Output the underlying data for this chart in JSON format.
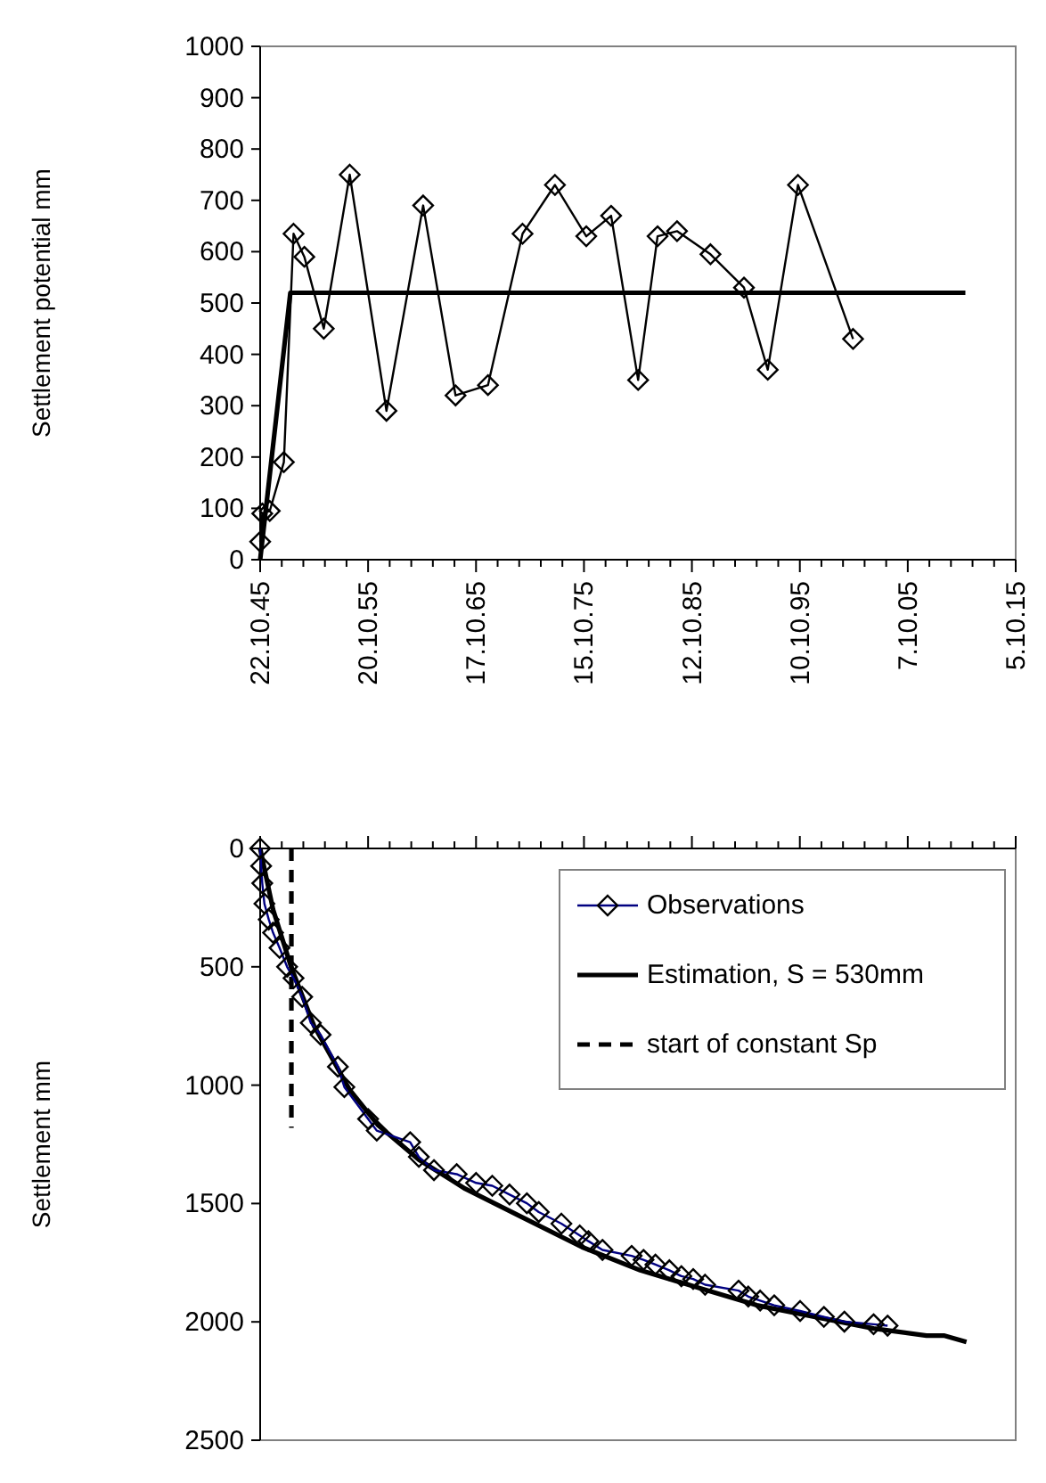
{
  "chart_data": [
    {
      "type": "line",
      "ylabel": "Settlement potential mm",
      "xlim": [
        "1945-10-22",
        "2015-10-05"
      ],
      "ylim": [
        0,
        1000
      ],
      "yticks": [
        0,
        100,
        200,
        300,
        400,
        500,
        600,
        700,
        800,
        900,
        1000
      ],
      "xticks": [
        {
          "value": "1945-10-22",
          "label": "22.10.45"
        },
        {
          "value": "1947-10-22",
          "label": null
        },
        {
          "value": "1949-10-21",
          "label": null
        },
        {
          "value": "1951-10-21",
          "label": null
        },
        {
          "value": "1953-10-20",
          "label": null
        },
        {
          "value": "1955-10-20",
          "label": "20.10.55"
        },
        {
          "value": "1957-10-19",
          "label": null
        },
        {
          "value": "1959-10-19",
          "label": null
        },
        {
          "value": "1961-10-18",
          "label": null
        },
        {
          "value": "1963-10-18",
          "label": null
        },
        {
          "value": "1965-10-17",
          "label": "17.10.65"
        },
        {
          "value": "1967-10-17",
          "label": null
        },
        {
          "value": "1969-10-16",
          "label": null
        },
        {
          "value": "1971-10-16",
          "label": null
        },
        {
          "value": "1973-10-15",
          "label": null
        },
        {
          "value": "1975-10-15",
          "label": "15.10.75"
        },
        {
          "value": "1977-10-14",
          "label": null
        },
        {
          "value": "1979-10-14",
          "label": null
        },
        {
          "value": "1981-10-13",
          "label": null
        },
        {
          "value": "1983-10-13",
          "label": null
        },
        {
          "value": "1985-10-12",
          "label": "12.10.85"
        },
        {
          "value": "1987-10-12",
          "label": null
        },
        {
          "value": "1989-10-11",
          "label": null
        },
        {
          "value": "1991-10-11",
          "label": null
        },
        {
          "value": "1993-10-10",
          "label": null
        },
        {
          "value": "1995-10-10",
          "label": "10.10.95"
        },
        {
          "value": "1997-10-09",
          "label": null
        },
        {
          "value": "1999-10-09",
          "label": null
        },
        {
          "value": "2001-10-08",
          "label": null
        },
        {
          "value": "2003-10-08",
          "label": null
        },
        {
          "value": "2005-10-07",
          "label": "7.10.05"
        },
        {
          "value": "2007-10-07",
          "label": null
        },
        {
          "value": "2009-10-06",
          "label": null
        },
        {
          "value": "2011-10-06",
          "label": null
        },
        {
          "value": "2013-10-05",
          "label": null
        },
        {
          "value": "2015-10-05",
          "label": "5.10.15"
        }
      ],
      "series": [
        {
          "color": "#000000",
          "marker": "diamond",
          "x": [
            "1945-10-22",
            "1946-01-01",
            "1946-09-12",
            "1948-01-01",
            "1948-11-24",
            "1949-11-24",
            "1951-09-12",
            "1954-02-06",
            "1957-07-02",
            "1960-11-24",
            "1963-11-24",
            "1966-11-24",
            "1970-02-06",
            "1973-02-06",
            "1976-01-01",
            "1978-04-20",
            "1980-10-20",
            "1982-08-08",
            "1984-05-27",
            "1987-07-02",
            "1990-08-08",
            "1992-10-20",
            "1995-08-08",
            "2000-09-13"
          ],
          "values": [
            35,
            90,
            95,
            190,
            635,
            590,
            450,
            750,
            290,
            690,
            320,
            340,
            635,
            730,
            630,
            670,
            350,
            630,
            640,
            595,
            530,
            370,
            730,
            430
          ]
        },
        {
          "color": "#000000",
          "marker": "none",
          "x": [
            "1945-10-22",
            "1948-08-08",
            "2011-02-06"
          ],
          "values": [
            0,
            520,
            520
          ]
        }
      ]
    },
    {
      "type": "line",
      "ylabel": "Settlement mm",
      "xlim": [
        "1945-10-22",
        "2015-10-05"
      ],
      "ylim": [
        2500,
        0
      ],
      "yticks": [
        0,
        500,
        1000,
        1500,
        2000,
        2500
      ],
      "tick_labels": "y",
      "legend": "top right",
      "xticks": [
        {
          "value": "1945-10-22",
          "label": null
        },
        {
          "value": "1947-10-22",
          "label": null
        },
        {
          "value": "1949-10-21",
          "label": null
        },
        {
          "value": "1951-10-21",
          "label": null
        },
        {
          "value": "1953-10-20",
          "label": null
        },
        {
          "value": "1955-10-20",
          "label": null
        },
        {
          "value": "1957-10-19",
          "label": null
        },
        {
          "value": "1959-10-19",
          "label": null
        },
        {
          "value": "1961-10-18",
          "label": null
        },
        {
          "value": "1963-10-18",
          "label": null
        },
        {
          "value": "1965-10-17",
          "label": null
        },
        {
          "value": "1967-10-17",
          "label": null
        },
        {
          "value": "1969-10-16",
          "label": null
        },
        {
          "value": "1971-10-16",
          "label": null
        },
        {
          "value": "1973-10-15",
          "label": null
        },
        {
          "value": "1975-10-15",
          "label": null
        },
        {
          "value": "1977-10-14",
          "label": null
        },
        {
          "value": "1979-10-14",
          "label": null
        },
        {
          "value": "1981-10-13",
          "label": null
        },
        {
          "value": "1983-10-13",
          "label": null
        },
        {
          "value": "1985-10-12",
          "label": null
        },
        {
          "value": "1987-10-12",
          "label": null
        },
        {
          "value": "1989-10-11",
          "label": null
        },
        {
          "value": "1991-10-11",
          "label": null
        },
        {
          "value": "1993-10-10",
          "label": null
        },
        {
          "value": "1995-10-10",
          "label": null
        },
        {
          "value": "1997-10-09",
          "label": null
        },
        {
          "value": "1999-10-09",
          "label": null
        },
        {
          "value": "2001-10-08",
          "label": null
        },
        {
          "value": "2003-10-08",
          "label": null
        },
        {
          "value": "2005-10-07",
          "label": null
        },
        {
          "value": "2007-10-07",
          "label": null
        },
        {
          "value": "2009-10-06",
          "label": null
        },
        {
          "value": "2011-10-06",
          "label": null
        },
        {
          "value": "2013-10-05",
          "label": null
        },
        {
          "value": "2015-10-05",
          "label": null
        }
      ],
      "series": [
        {
          "name": "Observations",
          "color": "#000080",
          "marker": "diamond",
          "x": [
            "1945-10-22",
            "1945-11-24",
            "1946-01-01",
            "1946-03-14",
            "1946-08-08",
            "1947-01-01",
            "1947-08-08",
            "1948-04-20",
            "1948-11-24",
            "1949-09-12",
            "1950-07-02",
            "1951-05-27",
            "1953-01-01",
            "1953-08-08",
            "1955-10-20",
            "1956-08-08",
            "1959-09-12",
            "1960-07-02",
            "1961-11-24",
            "1964-01-01",
            "1965-10-20",
            "1967-04-20",
            "1968-11-24",
            "1970-07-02",
            "1971-08-08",
            "1973-09-12",
            "1975-05-27",
            "1976-03-14",
            "1977-07-02",
            "1980-03-14",
            "1981-04-20",
            "1982-05-27",
            "1983-09-12",
            "1984-10-20",
            "1985-11-24",
            "1987-01-01",
            "1990-02-06",
            "1991-01-01",
            "1992-02-06",
            "1993-05-27",
            "1995-10-20",
            "1998-01-01",
            "1999-11-24",
            "2002-08-08",
            "2003-11-24"
          ],
          "values": [
            0,
            74,
            147,
            233,
            300,
            356,
            420,
            500,
            548,
            627,
            737,
            787,
            922,
            1008,
            1143,
            1192,
            1241,
            1303,
            1359,
            1376,
            1413,
            1425,
            1462,
            1499,
            1536,
            1585,
            1635,
            1659,
            1696,
            1721,
            1738,
            1758,
            1782,
            1807,
            1819,
            1843,
            1868,
            1893,
            1910,
            1930,
            1954,
            1979,
            1999,
            2010,
            2016
          ]
        },
        {
          "name": "Estimation, S = 530mm",
          "color": "#000000",
          "marker": "none",
          "x": [
            "1945-10-22",
            "1947-01-01",
            "1948-09-12",
            "1950-10-20",
            "1954-02-06",
            "1956-09-12",
            "1960-07-02",
            "1964-10-20",
            "1970-03-14",
            "1975-08-08",
            "1981-01-01",
            "1986-05-27",
            "1991-10-20",
            "1997-03-14",
            "2002-08-08",
            "2007-07-02",
            "2009-02-06",
            "2011-03-14"
          ],
          "values": [
            0,
            258,
            504,
            750,
            1020,
            1168,
            1315,
            1438,
            1561,
            1684,
            1782,
            1856,
            1930,
            1979,
            2028,
            2058,
            2058,
            2085
          ]
        },
        {
          "name": "start of constant Sp",
          "color": "#000000",
          "marker": "none",
          "line_style": "dashed",
          "x": [
            "1948-09-12",
            "1948-09-12"
          ],
          "values": [
            0,
            1180
          ]
        }
      ]
    }
  ]
}
